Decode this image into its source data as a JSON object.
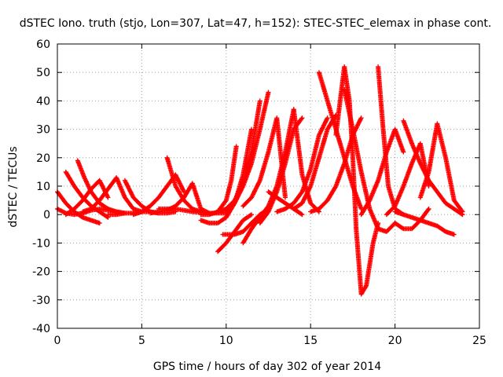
{
  "chart_data": {
    "type": "scatter",
    "title": "dSTEC Iono. truth (stjo, Lon=307, Lat=47, h=152): STEC-STEC_elemax in phase cont.",
    "xlabel": "GPS time / hours of day 302 of year 2014",
    "ylabel": "dSTEC  / TECUs",
    "xlim": [
      0,
      25
    ],
    "ylim": [
      -40,
      60
    ],
    "xticks": [
      0,
      5,
      10,
      15,
      20,
      25
    ],
    "yticks": [
      -40,
      -30,
      -20,
      -10,
      0,
      10,
      20,
      30,
      40,
      50,
      60
    ],
    "grid": true,
    "marker": "+",
    "series_color": "#ff0000",
    "arcs": [
      {
        "x": [
          0.0,
          0.5,
          1.0,
          1.5,
          2.0,
          2.5
        ],
        "y": [
          8,
          4,
          1,
          -1,
          -2,
          -3
        ]
      },
      {
        "x": [
          0.0,
          0.5,
          1.0,
          1.5,
          2.0,
          2.5,
          3.0,
          3.5,
          4.0
        ],
        "y": [
          2,
          0.5,
          0,
          0.5,
          1.5,
          2,
          1.5,
          1,
          0.5
        ]
      },
      {
        "x": [
          0.5,
          1.0,
          1.5,
          2.0,
          2.5,
          3.0
        ],
        "y": [
          15,
          10,
          6,
          3,
          1,
          -1
        ]
      },
      {
        "x": [
          1.2,
          1.6,
          2.0,
          2.5,
          3.0,
          3.5,
          4.0
        ],
        "y": [
          19,
          13,
          8,
          4,
          2,
          1,
          0.5
        ]
      },
      {
        "x": [
          0.5,
          1.0,
          1.5,
          2.0,
          2.5,
          3.0
        ],
        "y": [
          0,
          2,
          5,
          9,
          12,
          6
        ]
      },
      {
        "x": [
          1.5,
          2.0,
          2.5,
          3.0,
          3.5,
          4.0,
          4.5,
          5.0
        ],
        "y": [
          1,
          2,
          5,
          9,
          13,
          6,
          2,
          1
        ]
      },
      {
        "x": [
          3.0,
          3.5,
          4.0,
          4.5,
          5.0,
          5.5,
          6.0
        ],
        "y": [
          0,
          0,
          0.5,
          0.5,
          1,
          1,
          0.5
        ]
      },
      {
        "x": [
          4.0,
          4.5,
          5.0,
          5.5,
          6.0,
          6.5,
          7.0
        ],
        "y": [
          12,
          6,
          3,
          1,
          0.5,
          0.5,
          1
        ]
      },
      {
        "x": [
          4.5,
          5.0,
          5.5,
          6.0,
          6.5,
          7.0,
          7.5
        ],
        "y": [
          0,
          1,
          3,
          6,
          10,
          14,
          8
        ]
      },
      {
        "x": [
          5.5,
          6.0,
          6.5,
          7.0,
          7.5,
          8.0,
          8.5,
          9.0
        ],
        "y": [
          0.5,
          1,
          1.5,
          3,
          6,
          11,
          2,
          0.5
        ]
      },
      {
        "x": [
          6.5,
          7.0,
          7.5,
          8.0,
          8.5
        ],
        "y": [
          20,
          10,
          5,
          2,
          1
        ]
      },
      {
        "x": [
          6.0,
          7.0,
          8.0,
          9.0,
          10.0
        ],
        "y": [
          2,
          2,
          1,
          0.5,
          0.5
        ]
      },
      {
        "x": [
          8.5,
          9.0,
          9.5,
          10.0,
          10.3,
          10.6
        ],
        "y": [
          0,
          0,
          1,
          5,
          12,
          24
        ]
      },
      {
        "x": [
          8.5,
          9.0,
          9.5,
          10.0,
          10.5,
          11.0,
          11.5
        ],
        "y": [
          -2,
          -3,
          -3,
          -1,
          4,
          14,
          30
        ]
      },
      {
        "x": [
          9.5,
          10.0,
          10.5,
          11.0,
          11.5,
          12.0
        ],
        "y": [
          1,
          2,
          5,
          11,
          22,
          40
        ]
      },
      {
        "x": [
          9.5,
          10.0,
          10.5,
          11.0,
          11.5
        ],
        "y": [
          -13,
          -10,
          -6,
          -2,
          0
        ]
      },
      {
        "x": [
          9.8,
          10.5,
          11.0,
          11.5,
          12.0,
          12.5
        ],
        "y": [
          -7,
          -7,
          -6,
          -3,
          0,
          2
        ]
      },
      {
        "x": [
          10.0,
          10.5,
          11.0,
          11.5,
          12.0,
          12.5
        ],
        "y": [
          1,
          4,
          10,
          18,
          30,
          43
        ]
      },
      {
        "x": [
          11.0,
          11.5,
          12.0,
          12.5,
          13.0,
          13.5,
          14.0
        ],
        "y": [
          -10,
          -5,
          -1,
          3,
          10,
          22,
          37
        ]
      },
      {
        "x": [
          11.0,
          11.5,
          12.0,
          12.5,
          13.0,
          13.5
        ],
        "y": [
          3,
          6,
          12,
          22,
          34,
          6
        ]
      },
      {
        "x": [
          12.0,
          12.5,
          13.0,
          13.5,
          14.0,
          14.5
        ],
        "y": [
          -3,
          1,
          8,
          18,
          30,
          34
        ]
      },
      {
        "x": [
          12.5,
          13.0,
          13.5,
          14.0,
          14.5
        ],
        "y": [
          8,
          6,
          4,
          2,
          0
        ]
      },
      {
        "x": [
          13.0,
          13.5,
          14.0,
          14.5,
          15.0,
          15.5,
          16.0
        ],
        "y": [
          1,
          2,
          4,
          8,
          16,
          28,
          34
        ]
      },
      {
        "x": [
          14.0,
          14.5,
          15.0,
          15.5,
          16.0,
          16.5
        ],
        "y": [
          2,
          4,
          10,
          20,
          30,
          35
        ]
      },
      {
        "x": [
          14.0,
          14.5,
          15.0,
          15.5
        ],
        "y": [
          37,
          14,
          4,
          1
        ]
      },
      {
        "x": [
          15.5,
          16.0,
          16.5,
          17.0,
          17.5,
          18.0
        ],
        "y": [
          50,
          40,
          30,
          20,
          10,
          2
        ]
      },
      {
        "x": [
          15.0,
          15.5,
          16.0,
          16.5,
          17.0,
          17.5,
          18.0
        ],
        "y": [
          1,
          2,
          5,
          10,
          18,
          28,
          34
        ]
      },
      {
        "x": [
          16.5,
          17.0,
          17.3,
          17.5,
          17.7,
          18.0,
          18.3,
          18.7,
          19.0
        ],
        "y": [
          28,
          52,
          40,
          20,
          -5,
          -28,
          -25,
          -10,
          -3
        ]
      },
      {
        "x": [
          17.0,
          17.5,
          18.0,
          18.5,
          19.0,
          19.5,
          20.0
        ],
        "y": [
          44,
          30,
          15,
          2,
          -5,
          -6,
          -3
        ]
      },
      {
        "x": [
          18.0,
          18.5,
          19.0,
          19.5,
          20.0,
          20.5
        ],
        "y": [
          0,
          5,
          12,
          22,
          30,
          22
        ]
      },
      {
        "x": [
          19.0,
          19.3,
          19.6,
          20.0,
          20.5
        ],
        "y": [
          52,
          30,
          10,
          2,
          0
        ]
      },
      {
        "x": [
          19.5,
          20.0,
          20.5,
          21.0,
          21.5,
          22.0
        ],
        "y": [
          0,
          3,
          10,
          18,
          25,
          10
        ]
      },
      {
        "x": [
          20.0,
          20.5,
          21.0,
          21.5,
          22.0,
          22.5,
          23.0,
          23.5
        ],
        "y": [
          1,
          0,
          -1,
          -2,
          -3,
          -4,
          -6,
          -7
        ]
      },
      {
        "x": [
          20.5,
          21.0,
          21.5,
          22.0,
          22.5,
          23.0,
          23.5,
          24.0
        ],
        "y": [
          33,
          25,
          18,
          12,
          8,
          4,
          2,
          0
        ]
      },
      {
        "x": [
          21.5,
          22.0,
          22.5,
          23.0,
          23.5,
          24.0
        ],
        "y": [
          6,
          15,
          32,
          20,
          5,
          1
        ]
      },
      {
        "x": [
          20.0,
          20.5,
          21.0,
          21.5,
          22.0
        ],
        "y": [
          -3,
          -5,
          -5,
          -2,
          2
        ]
      }
    ]
  }
}
